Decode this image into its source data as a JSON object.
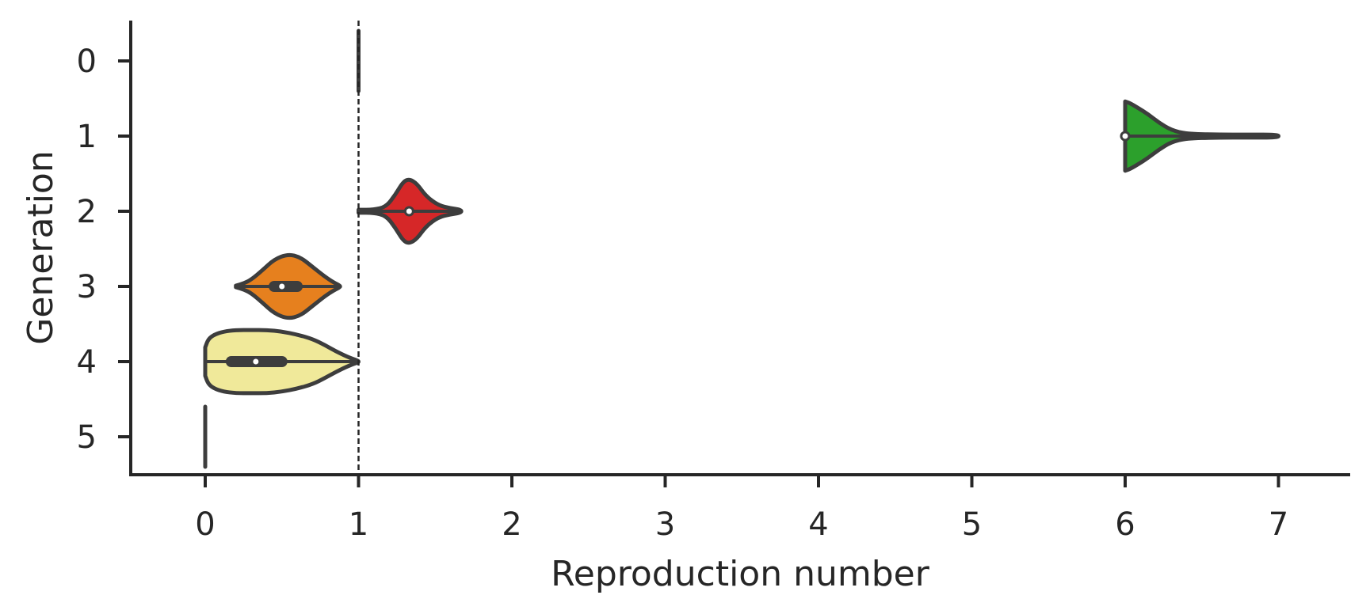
{
  "chart_data": {
    "type": "violin",
    "orientation": "horizontal",
    "xlabel": "Reproduction number",
    "ylabel": "Generation",
    "xlim": [
      -0.5,
      7.5
    ],
    "xticks": [
      "0",
      "1",
      "2",
      "3",
      "4",
      "5",
      "6",
      "7"
    ],
    "yticks": [
      "0",
      "1",
      "2",
      "3",
      "4",
      "5"
    ],
    "grid": false,
    "reference_line": {
      "x": 1,
      "style": "dashed"
    },
    "series": [
      {
        "generation": "0",
        "color": "#1f77b4",
        "min": 1.0,
        "max": 1.0,
        "q1": 1.0,
        "median": 1.0,
        "q3": 1.0,
        "degenerate": true
      },
      {
        "generation": "1",
        "color": "#2ca02c",
        "min": 6.0,
        "max": 7.0,
        "q1": 6.0,
        "median": 6.0,
        "q3": 6.0,
        "density_x": [
          6.0,
          6.03,
          6.08,
          6.15,
          6.22,
          6.3,
          6.4,
          6.6,
          6.8,
          7.0
        ],
        "density_w": [
          0.46,
          0.44,
          0.38,
          0.29,
          0.18,
          0.08,
          0.03,
          0.02,
          0.02,
          0.02
        ]
      },
      {
        "generation": "2",
        "color": "#d62728",
        "min": 1.0,
        "max": 1.67,
        "q1": 1.33,
        "median": 1.33,
        "q3": 1.33,
        "density_x": [
          1.0,
          1.1,
          1.18,
          1.24,
          1.29,
          1.33,
          1.38,
          1.44,
          1.52,
          1.6,
          1.67
        ],
        "density_w": [
          0.02,
          0.02,
          0.06,
          0.22,
          0.39,
          0.43,
          0.37,
          0.2,
          0.08,
          0.04,
          0.02
        ]
      },
      {
        "generation": "3",
        "color": "#e6801e",
        "min": 0.2,
        "max": 0.88,
        "q1": 0.45,
        "median": 0.5,
        "q3": 0.6,
        "density_x": [
          0.2,
          0.25,
          0.3,
          0.37,
          0.45,
          0.54,
          0.62,
          0.7,
          0.78,
          0.84,
          0.88
        ],
        "density_w": [
          0.01,
          0.04,
          0.09,
          0.21,
          0.36,
          0.43,
          0.39,
          0.26,
          0.13,
          0.05,
          0.01
        ]
      },
      {
        "generation": "4",
        "color": "#f0e99a",
        "min": 0.0,
        "max": 1.0,
        "q1": 0.17,
        "median": 0.33,
        "q3": 0.5,
        "density_x": [
          0.0,
          0.02,
          0.06,
          0.12,
          0.2,
          0.3,
          0.4,
          0.5,
          0.6,
          0.7,
          0.78,
          0.85,
          0.92,
          0.97,
          1.0
        ],
        "density_w": [
          0.19,
          0.3,
          0.36,
          0.4,
          0.42,
          0.42,
          0.42,
          0.4,
          0.36,
          0.3,
          0.22,
          0.14,
          0.07,
          0.03,
          0.01
        ]
      },
      {
        "generation": "5",
        "color": "#1f77b4",
        "min": 0.0,
        "max": 0.0,
        "q1": 0.0,
        "median": 0.0,
        "q3": 0.0,
        "degenerate": true
      }
    ]
  }
}
